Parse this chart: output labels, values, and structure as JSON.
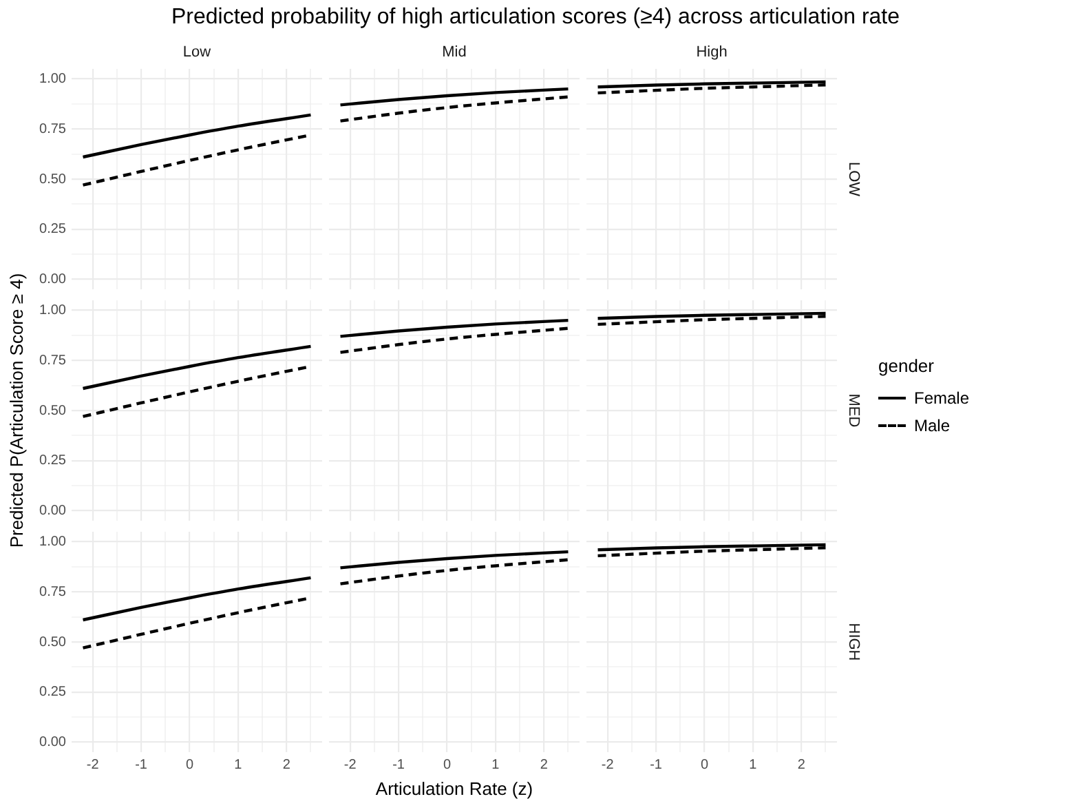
{
  "chart_data": [
    {
      "type": "line",
      "title": "Low",
      "annotations": [
        "Predicted probability of high articulation scores (≥4) across articulation rate"
      ],
      "legend": "right",
      "legend_title": "gender",
      "x": [
        -2.2,
        -1,
        0,
        1,
        2.5
      ],
      "xlim": [
        -2.435,
        2.735
      ],
      "xticks": [
        -2,
        -1,
        0,
        1,
        2
      ],
      "ylim": [
        -0.05,
        1.05
      ],
      "yticks": [
        {
          "value": 0,
          "label": "0.00"
        },
        {
          "value": 0.25,
          "label": "0.25"
        },
        {
          "value": 0.5,
          "label": "0.50"
        },
        {
          "value": 0.75,
          "label": "0.75"
        },
        {
          "value": 1,
          "label": "1.00"
        }
      ],
      "grid": true,
      "tick_labels": "y",
      "marker": "none",
      "series": [
        {
          "name": "Female",
          "color": "#000000",
          "line_style": "solid",
          "values": [
            0.61,
            0.672,
            0.72,
            0.764,
            0.82
          ]
        },
        {
          "name": "Male",
          "color": "#000000",
          "line_style": "dashed",
          "values": [
            0.47,
            0.538,
            0.593,
            0.646,
            0.72
          ]
        }
      ]
    },
    {
      "type": "line",
      "title": "Mid",
      "x": [
        -2.2,
        -1,
        0,
        1,
        2.5
      ],
      "xlim": [
        -2.435,
        2.735
      ],
      "xticks": [
        -2,
        -1,
        0,
        1,
        2
      ],
      "ylim": [
        -0.05,
        1.05
      ],
      "yticks": [
        0,
        0.25,
        0.5,
        0.75,
        1
      ],
      "grid": true,
      "tick_labels": false,
      "marker": "none",
      "series": [
        {
          "color": "#000000",
          "line_style": "solid",
          "values": [
            0.87,
            0.897,
            0.916,
            0.932,
            0.95
          ]
        },
        {
          "color": "#000000",
          "line_style": "dashed",
          "values": [
            0.79,
            0.829,
            0.857,
            0.88,
            0.91
          ]
        }
      ]
    },
    {
      "type": "line",
      "title": "High",
      "y2label": "LOW",
      "x": [
        -2.2,
        -1,
        0,
        1,
        2.5
      ],
      "xlim": [
        -2.435,
        2.735
      ],
      "xticks": [
        -2,
        -1,
        0,
        1,
        2
      ],
      "ylim": [
        -0.05,
        1.05
      ],
      "yticks": [
        0,
        0.25,
        0.5,
        0.75,
        1
      ],
      "grid": true,
      "tick_labels": false,
      "marker": "none",
      "series": [
        {
          "color": "#000000",
          "line_style": "solid",
          "values": [
            0.96,
            0.969,
            0.975,
            0.979,
            0.985
          ]
        },
        {
          "color": "#000000",
          "line_style": "dashed",
          "values": [
            0.93,
            0.943,
            0.953,
            0.96,
            0.97
          ]
        }
      ]
    },
    {
      "type": "line",
      "ylabel": "Predicted P(Articulation Score ≥ 4)",
      "x": [
        -2.2,
        -1,
        0,
        1,
        2.5
      ],
      "xlim": [
        -2.435,
        2.735
      ],
      "xticks": [
        -2,
        -1,
        0,
        1,
        2
      ],
      "ylim": [
        -0.05,
        1.05
      ],
      "yticks": [
        {
          "value": 0,
          "label": "0.00"
        },
        {
          "value": 0.25,
          "label": "0.25"
        },
        {
          "value": 0.5,
          "label": "0.50"
        },
        {
          "value": 0.75,
          "label": "0.75"
        },
        {
          "value": 1,
          "label": "1.00"
        }
      ],
      "grid": true,
      "tick_labels": "y",
      "marker": "none",
      "series": [
        {
          "color": "#000000",
          "line_style": "solid",
          "values": [
            0.61,
            0.672,
            0.72,
            0.764,
            0.82
          ]
        },
        {
          "color": "#000000",
          "line_style": "dashed",
          "values": [
            0.47,
            0.538,
            0.593,
            0.646,
            0.72
          ]
        }
      ]
    },
    {
      "type": "line",
      "x": [
        -2.2,
        -1,
        0,
        1,
        2.5
      ],
      "xlim": [
        -2.435,
        2.735
      ],
      "xticks": [
        -2,
        -1,
        0,
        1,
        2
      ],
      "ylim": [
        -0.05,
        1.05
      ],
      "yticks": [
        0,
        0.25,
        0.5,
        0.75,
        1
      ],
      "grid": true,
      "tick_labels": false,
      "marker": "none",
      "series": [
        {
          "color": "#000000",
          "line_style": "solid",
          "values": [
            0.87,
            0.897,
            0.916,
            0.932,
            0.95
          ]
        },
        {
          "color": "#000000",
          "line_style": "dashed",
          "values": [
            0.79,
            0.829,
            0.857,
            0.88,
            0.91
          ]
        }
      ]
    },
    {
      "type": "line",
      "y2label": "MED",
      "x": [
        -2.2,
        -1,
        0,
        1,
        2.5
      ],
      "xlim": [
        -2.435,
        2.735
      ],
      "xticks": [
        -2,
        -1,
        0,
        1,
        2
      ],
      "ylim": [
        -0.05,
        1.05
      ],
      "yticks": [
        0,
        0.25,
        0.5,
        0.75,
        1
      ],
      "grid": true,
      "tick_labels": false,
      "marker": "none",
      "series": [
        {
          "color": "#000000",
          "line_style": "solid",
          "values": [
            0.96,
            0.969,
            0.975,
            0.979,
            0.985
          ]
        },
        {
          "color": "#000000",
          "line_style": "dashed",
          "values": [
            0.93,
            0.943,
            0.953,
            0.96,
            0.97
          ]
        }
      ]
    },
    {
      "type": "line",
      "x": [
        -2.2,
        -1,
        0,
        1,
        2.5
      ],
      "xlim": [
        -2.435,
        2.735
      ],
      "xticks": [
        -2,
        -1,
        0,
        1,
        2
      ],
      "ylim": [
        -0.05,
        1.05
      ],
      "yticks": [
        {
          "value": 0,
          "label": "0.00"
        },
        {
          "value": 0.25,
          "label": "0.25"
        },
        {
          "value": 0.5,
          "label": "0.50"
        },
        {
          "value": 0.75,
          "label": "0.75"
        },
        {
          "value": 1,
          "label": "1.00"
        }
      ],
      "grid": true,
      "marker": "none",
      "series": [
        {
          "color": "#000000",
          "line_style": "solid",
          "values": [
            0.61,
            0.672,
            0.72,
            0.764,
            0.82
          ]
        },
        {
          "color": "#000000",
          "line_style": "dashed",
          "values": [
            0.47,
            0.538,
            0.593,
            0.646,
            0.72
          ]
        }
      ]
    },
    {
      "type": "line",
      "xlabel": "Articulation Rate (z)",
      "x": [
        -2.2,
        -1,
        0,
        1,
        2.5
      ],
      "xlim": [
        -2.435,
        2.735
      ],
      "xticks": [
        -2,
        -1,
        0,
        1,
        2
      ],
      "ylim": [
        -0.05,
        1.05
      ],
      "yticks": [
        0,
        0.25,
        0.5,
        0.75,
        1
      ],
      "grid": true,
      "tick_labels": "x",
      "marker": "none",
      "series": [
        {
          "color": "#000000",
          "line_style": "solid",
          "values": [
            0.87,
            0.897,
            0.916,
            0.932,
            0.95
          ]
        },
        {
          "color": "#000000",
          "line_style": "dashed",
          "values": [
            0.79,
            0.829,
            0.857,
            0.88,
            0.91
          ]
        }
      ]
    },
    {
      "type": "line",
      "y2label": "HIGH",
      "x": [
        -2.2,
        -1,
        0,
        1,
        2.5
      ],
      "xlim": [
        -2.435,
        2.735
      ],
      "xticks": [
        -2,
        -1,
        0,
        1,
        2
      ],
      "ylim": [
        -0.05,
        1.05
      ],
      "yticks": [
        0,
        0.25,
        0.5,
        0.75,
        1
      ],
      "grid": true,
      "tick_labels": "x",
      "marker": "none",
      "series": [
        {
          "color": "#000000",
          "line_style": "solid",
          "values": [
            0.96,
            0.969,
            0.975,
            0.979,
            0.985
          ]
        },
        {
          "color": "#000000",
          "line_style": "dashed",
          "values": [
            0.93,
            0.943,
            0.953,
            0.96,
            0.97
          ]
        }
      ]
    }
  ]
}
